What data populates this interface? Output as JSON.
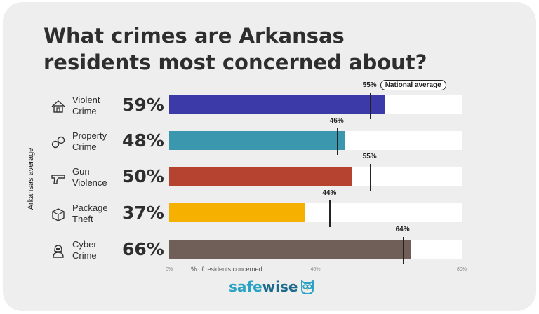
{
  "chart_data": {
    "type": "bar",
    "orientation": "horizontal",
    "title": "What crimes are Arkansas residents most concerned about?",
    "title_lines": [
      "What crimes are Arkansas",
      "residents most concerned about?"
    ],
    "ylabel": "Arkansas average",
    "xlabel": "% of residents concerned",
    "xlim": [
      0,
      80
    ],
    "x_ticks": [
      "0%",
      "40%",
      "80%"
    ],
    "reference_label": "National average",
    "categories": [
      {
        "name": "Violent Crime",
        "lines": [
          "Violent",
          "Crime"
        ],
        "icon": "house-icon",
        "value": 59,
        "label": "59%",
        "national": 55,
        "national_label": "55%",
        "color": "#3b3aa8"
      },
      {
        "name": "Property Crime",
        "lines": [
          "Property",
          "Crime"
        ],
        "icon": "handcuffs-icon",
        "value": 48,
        "label": "48%",
        "national": 46,
        "national_label": "46%",
        "color": "#3a97ae"
      },
      {
        "name": "Gun Violence",
        "lines": [
          "Gun",
          "Violence"
        ],
        "icon": "gun-icon",
        "value": 50,
        "label": "50%",
        "national": 55,
        "national_label": "55%",
        "color": "#b5432f"
      },
      {
        "name": "Package Theft",
        "lines": [
          "Package",
          "Theft"
        ],
        "icon": "package-icon",
        "value": 37,
        "label": "37%",
        "national": 44,
        "national_label": "44%",
        "color": "#f5b000"
      },
      {
        "name": "Cyber Crime",
        "lines": [
          "Cyber",
          "Crime"
        ],
        "icon": "hacker-icon",
        "value": 66,
        "label": "66%",
        "national": 64,
        "national_label": "64%",
        "color": "#705f59"
      }
    ]
  },
  "brand": {
    "safe": "safe",
    "wise": "wise",
    "icon": "owl-icon"
  }
}
